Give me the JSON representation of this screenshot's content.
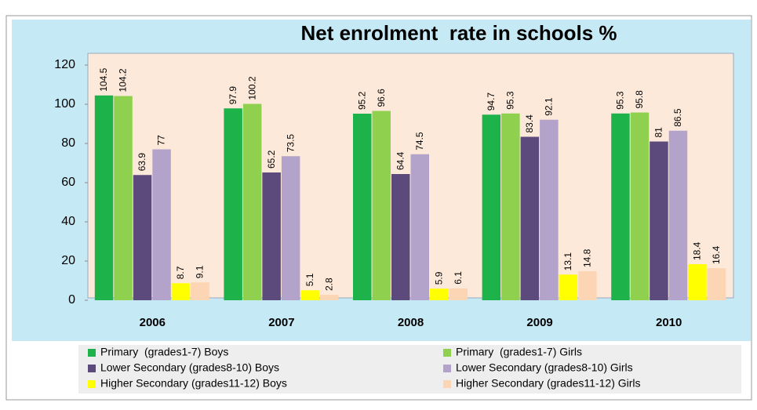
{
  "chart_data": {
    "type": "bar",
    "title": "Net enrolment  rate in schools %",
    "categories": [
      "2006",
      "2007",
      "2008",
      "2009",
      "2010"
    ],
    "series": [
      {
        "name": "Primary  (grades1-7) Boys",
        "color": "#1db34a",
        "values": [
          104.5,
          97.9,
          95.2,
          94.7,
          95.3
        ]
      },
      {
        "name": "Primary  (grades1-7) Girls",
        "color": "#8fd14f",
        "values": [
          104.2,
          100.2,
          96.6,
          95.3,
          95.8
        ]
      },
      {
        "name": "Lower Secondary (grades8-10) Boys",
        "color": "#5c4a7c",
        "values": [
          63.9,
          65.2,
          64.4,
          83.4,
          81
        ]
      },
      {
        "name": "Lower Secondary (grades8-10) Girls",
        "color": "#b3a2c9",
        "values": [
          77,
          73.5,
          74.5,
          92.1,
          86.5
        ]
      },
      {
        "name": "Higher Secondary (grades11-12) Boys",
        "color": "#ffff00",
        "values": [
          8.7,
          5.1,
          5.9,
          13.1,
          18.4
        ]
      },
      {
        "name": "Higher Secondary (grades11-12) Girls",
        "color": "#fcd5b5",
        "values": [
          9.1,
          2.8,
          6.1,
          14.8,
          16.4
        ]
      }
    ],
    "ylim": [
      0,
      120
    ],
    "yticks": [
      0,
      20,
      40,
      60,
      80,
      100,
      120
    ]
  }
}
